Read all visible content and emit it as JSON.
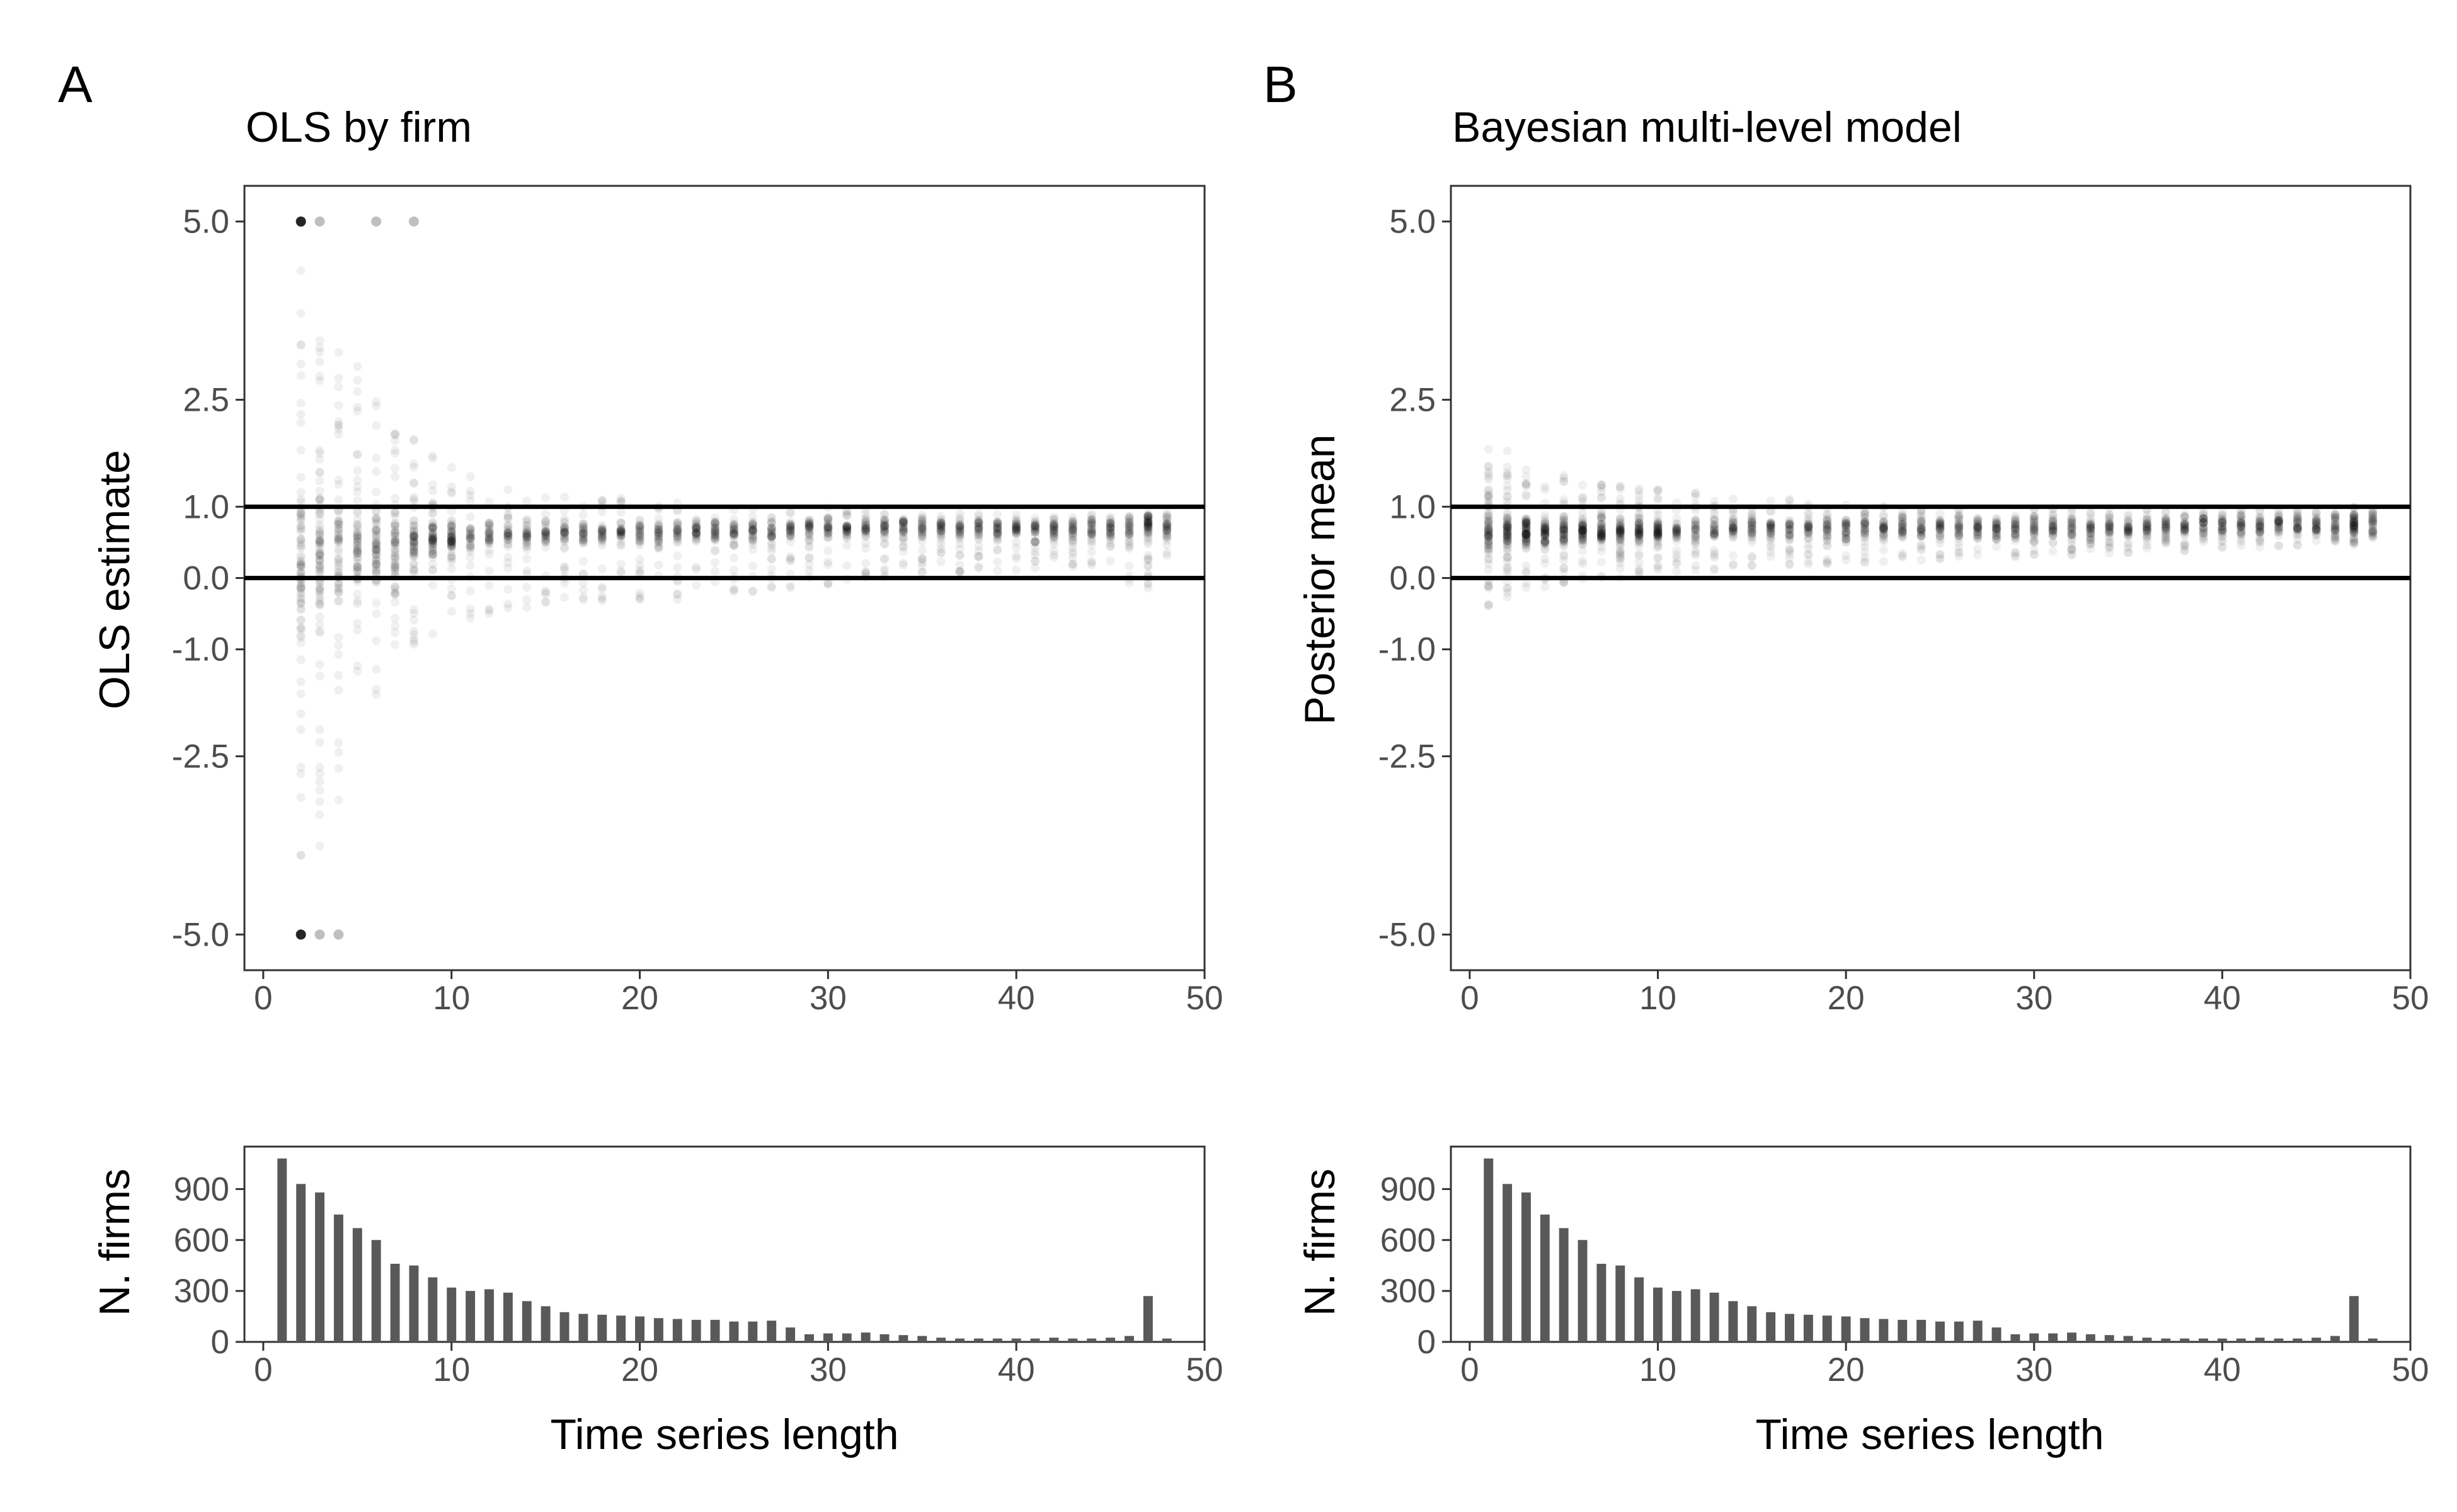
{
  "panels": [
    {
      "letter": "A",
      "title": "OLS by firm",
      "scatter_ylabel": "OLS estimate",
      "hist_ylabel": "N. firms",
      "xlabel": "Time series length"
    },
    {
      "letter": "B",
      "title": "Bayesian multi-level model",
      "scatter_ylabel": "Posterior mean",
      "hist_ylabel": "N. firms",
      "xlabel": "Time series length"
    }
  ],
  "chart_data": [
    {
      "type": "scatter",
      "panel": "A",
      "title": "OLS by firm",
      "xlabel": "",
      "ylabel": "OLS estimate",
      "xlim": [
        -1,
        50
      ],
      "ylim": [
        -5.5,
        5.5
      ],
      "xticks": [
        0,
        10,
        20,
        30,
        40,
        50
      ],
      "yticks": [
        5.0,
        2.5,
        1.0,
        0.0,
        -1.0,
        -2.5,
        -5.0
      ],
      "ytick_labels": [
        "5.0",
        "2.5",
        "1.0",
        "0.0",
        "-1.0",
        "-2.5",
        "-5.0"
      ],
      "hlines": [
        0.0,
        1.0
      ],
      "point_opacity": "low (alpha ~0.05)",
      "spread_by_length": {
        "x": [
          2,
          3,
          4,
          5,
          6,
          7,
          8,
          9,
          10,
          12,
          15,
          20,
          25,
          30,
          35,
          40,
          45,
          47,
          48
        ],
        "center": [
          0.3,
          0.3,
          0.35,
          0.4,
          0.45,
          0.5,
          0.5,
          0.55,
          0.55,
          0.6,
          0.6,
          0.65,
          0.65,
          0.7,
          0.7,
          0.7,
          0.7,
          0.75,
          0.7
        ],
        "low": [
          -5.0,
          -5.0,
          -3.2,
          -2.2,
          -1.7,
          -1.2,
          -1.0,
          -0.8,
          -0.7,
          -0.5,
          -0.4,
          -0.3,
          -0.3,
          -0.1,
          0.0,
          0.1,
          0.2,
          -0.35,
          0.3
        ],
        "high": [
          5.0,
          5.0,
          4.0,
          3.2,
          2.6,
          2.2,
          2.0,
          1.8,
          1.6,
          1.3,
          1.2,
          1.1,
          1.0,
          1.0,
          0.9,
          0.9,
          0.9,
          0.95,
          0.9
        ]
      },
      "clipped_points": [
        {
          "x": 2,
          "y": 5.0
        },
        {
          "x": 3,
          "y": 5.0
        },
        {
          "x": 6,
          "y": 5.0
        },
        {
          "x": 8,
          "y": 5.0
        },
        {
          "x": 2,
          "y": -5.0
        },
        {
          "x": 3,
          "y": -5.0
        },
        {
          "x": 4,
          "y": -5.0
        }
      ]
    },
    {
      "type": "scatter",
      "panel": "B",
      "title": "Bayesian multi-level model",
      "xlabel": "",
      "ylabel": "Posterior mean",
      "xlim": [
        -1,
        50
      ],
      "ylim": [
        -5.5,
        5.5
      ],
      "xticks": [
        0,
        10,
        20,
        30,
        40,
        50
      ],
      "yticks": [
        5.0,
        2.5,
        1.0,
        0.0,
        -1.0,
        -2.5,
        -5.0
      ],
      "ytick_labels": [
        "5.0",
        "2.5",
        "1.0",
        "0.0",
        "-1.0",
        "-2.5",
        "-5.0"
      ],
      "hlines": [
        0.0,
        1.0
      ],
      "point_opacity": "low (alpha ~0.05)",
      "spread_by_length": {
        "x": [
          1,
          2,
          3,
          4,
          5,
          6,
          8,
          10,
          15,
          20,
          25,
          30,
          35,
          40,
          45,
          47,
          48
        ],
        "center": [
          0.65,
          0.65,
          0.65,
          0.65,
          0.65,
          0.65,
          0.65,
          0.65,
          0.7,
          0.7,
          0.7,
          0.7,
          0.7,
          0.75,
          0.75,
          0.75,
          0.75
        ],
        "low": [
          -0.45,
          -0.3,
          -0.2,
          -0.15,
          -0.1,
          -0.1,
          0.0,
          0.05,
          0.15,
          0.2,
          0.25,
          0.3,
          0.35,
          0.4,
          0.45,
          0.45,
          0.5
        ],
        "high": [
          1.9,
          1.8,
          1.6,
          1.5,
          1.45,
          1.35,
          1.3,
          1.25,
          1.15,
          1.05,
          1.0,
          1.0,
          1.0,
          0.95,
          0.95,
          1.0,
          0.95
        ]
      }
    },
    {
      "type": "bar",
      "panel": "A",
      "xlabel": "Time series length",
      "ylabel": "N. firms",
      "xlim": [
        -1,
        50
      ],
      "ylim": [
        0,
        1150
      ],
      "xticks": [
        0,
        10,
        20,
        30,
        40,
        50
      ],
      "yticks": [
        0,
        300,
        600,
        900
      ],
      "x": [
        1,
        2,
        3,
        4,
        5,
        6,
        7,
        8,
        9,
        10,
        11,
        12,
        13,
        14,
        15,
        16,
        17,
        18,
        19,
        20,
        21,
        22,
        23,
        24,
        25,
        26,
        27,
        28,
        29,
        30,
        31,
        32,
        33,
        34,
        35,
        36,
        37,
        38,
        39,
        40,
        41,
        42,
        43,
        44,
        45,
        46,
        47,
        48
      ],
      "values": [
        1080,
        930,
        880,
        750,
        670,
        600,
        460,
        450,
        380,
        320,
        300,
        310,
        290,
        240,
        210,
        175,
        165,
        160,
        155,
        150,
        140,
        135,
        130,
        130,
        120,
        120,
        125,
        85,
        45,
        50,
        50,
        55,
        45,
        40,
        35,
        25,
        20,
        20,
        20,
        20,
        20,
        25,
        20,
        20,
        25,
        35,
        270,
        20
      ]
    },
    {
      "type": "bar",
      "panel": "B",
      "xlabel": "Time series length",
      "ylabel": "N. firms",
      "xlim": [
        -1,
        50
      ],
      "ylim": [
        0,
        1150
      ],
      "xticks": [
        0,
        10,
        20,
        30,
        40,
        50
      ],
      "yticks": [
        0,
        300,
        600,
        900
      ],
      "x": [
        1,
        2,
        3,
        4,
        5,
        6,
        7,
        8,
        9,
        10,
        11,
        12,
        13,
        14,
        15,
        16,
        17,
        18,
        19,
        20,
        21,
        22,
        23,
        24,
        25,
        26,
        27,
        28,
        29,
        30,
        31,
        32,
        33,
        34,
        35,
        36,
        37,
        38,
        39,
        40,
        41,
        42,
        43,
        44,
        45,
        46,
        47,
        48
      ],
      "values": [
        1080,
        930,
        880,
        750,
        670,
        600,
        460,
        450,
        380,
        320,
        300,
        310,
        290,
        240,
        210,
        175,
        165,
        160,
        155,
        150,
        140,
        135,
        130,
        130,
        120,
        120,
        125,
        85,
        45,
        50,
        50,
        55,
        45,
        40,
        35,
        25,
        20,
        20,
        20,
        20,
        20,
        25,
        20,
        20,
        25,
        35,
        270,
        20
      ]
    }
  ]
}
